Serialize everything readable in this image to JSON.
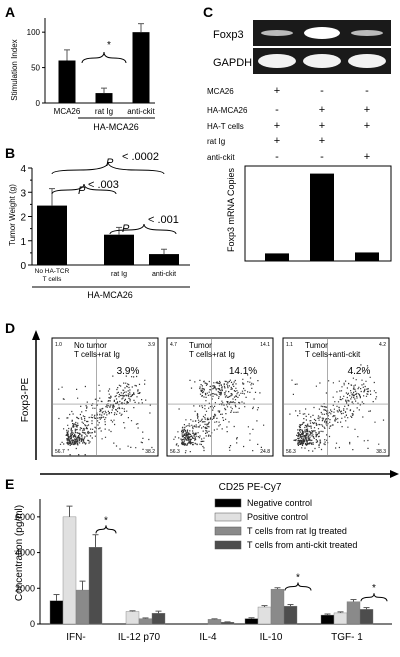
{
  "panels": {
    "A": "A",
    "B": "B",
    "C": "C",
    "D": "D",
    "E": "E"
  },
  "colors": {
    "bar_black": "#000000",
    "gel_bg": "#1a1a1a",
    "gel_band": "#ffffff",
    "neg": "#000000",
    "pos": "#e0e0e0",
    "ratig": "#8a8a8a",
    "ckit": "#4d4d4d"
  },
  "panelA": {
    "brace_label": "*",
    "group_label": "HA-MCA26"
  },
  "panelB": {
    "group_label": "HA-MCA26",
    "brackets": [
      {
        "p": "P",
        "rel": "< .0002"
      },
      {
        "p": "P",
        "rel": "< .003"
      },
      {
        "p": "P",
        "rel": "< .001"
      }
    ]
  },
  "panelC": {
    "gel_labels": [
      "Foxp3",
      "GAPDH"
    ],
    "rows": [
      {
        "label": "MCA26",
        "signs": [
          "+",
          "-",
          "-"
        ]
      },
      {
        "label": "HA-MCA26",
        "signs": [
          "-",
          "+",
          "+"
        ]
      },
      {
        "label": "HA-T cells",
        "signs": [
          "+",
          "+",
          "+"
        ]
      },
      {
        "label": "rat Ig",
        "signs": [
          "+",
          "+",
          ""
        ]
      },
      {
        "label": "anti-ckit",
        "signs": [
          "-",
          "-",
          "+"
        ]
      }
    ]
  },
  "panelD": {
    "y_label": "Foxp3-PE",
    "x_label": "CD25 PE-Cy7",
    "plots": [
      {
        "title1": "No tumor",
        "title2": "T cells+rat Ig",
        "pct": "3.9%",
        "ul": "1.0",
        "ur": "3.9",
        "ll": "56.7",
        "lr": "38.2"
      },
      {
        "title1": "Tumor",
        "title2": "T cells+rat Ig",
        "pct": "14.1%",
        "ul": "4.7",
        "ur": "14.1",
        "ll": "56.3",
        "lr": "24.8"
      },
      {
        "title1": "Tumor",
        "title2": "T cells+anti-ckit",
        "pct": "4.2%",
        "ul": "1.1",
        "ur": "4.2",
        "ll": "56.3",
        "lr": "38.3"
      }
    ]
  },
  "chart_data": [
    {
      "id": "A",
      "type": "bar",
      "ylabel": "Stimulation Index",
      "categories": [
        "MCA26",
        "rat Ig",
        "anti-ckit"
      ],
      "values": [
        60,
        14,
        100
      ],
      "errors": [
        15,
        7,
        12
      ],
      "ylim": [
        0,
        120
      ],
      "yticks": [
        0,
        50,
        100
      ],
      "annotations": [
        "*"
      ]
    },
    {
      "id": "B",
      "type": "bar",
      "ylabel": "Tumor Weight (g)",
      "categories": [
        "No HA-TCR T cells",
        "rat Ig",
        "anti-ckit"
      ],
      "values": [
        2.45,
        1.25,
        0.45
      ],
      "errors": [
        0.7,
        0.3,
        0.2
      ],
      "ylim": [
        0,
        4
      ],
      "yticks": [
        0,
        0.5,
        1,
        1.5,
        2,
        2.5,
        3,
        3.5,
        4
      ]
    },
    {
      "id": "C",
      "type": "bar",
      "ylabel": "Foxp3 mRNA Copies",
      "values": [
        4,
        46,
        4.5
      ],
      "ylim": [
        0,
        50
      ]
    },
    {
      "id": "E",
      "type": "bar",
      "ylabel": "Concentration (pg/ml)",
      "categories": [
        "IFN-",
        "IL-12 p70",
        "IL-4",
        "IL-10",
        "TGF- 1"
      ],
      "ylim": [
        0,
        7000
      ],
      "yticks": [
        0,
        2000,
        4000,
        6000
      ],
      "series": [
        {
          "name": "Negative control",
          "values": [
            1300,
            0,
            0,
            300,
            500
          ],
          "errors": [
            350,
            0,
            0,
            50,
            60
          ]
        },
        {
          "name": "Positive control",
          "values": [
            6000,
            700,
            0,
            950,
            620
          ],
          "errors": [
            600,
            40,
            0,
            80,
            60
          ]
        },
        {
          "name": "T cells from rat Ig treated",
          "values": [
            1900,
            300,
            260,
            1950,
            1250
          ],
          "errors": [
            500,
            40,
            30,
            80,
            120
          ]
        },
        {
          "name": "T cells from anti-ckit treated",
          "values": [
            4300,
            600,
            100,
            1000,
            820
          ],
          "errors": [
            700,
            120,
            20,
            90,
            100
          ]
        }
      ],
      "significance": [
        "*",
        "*",
        "*"
      ]
    }
  ]
}
